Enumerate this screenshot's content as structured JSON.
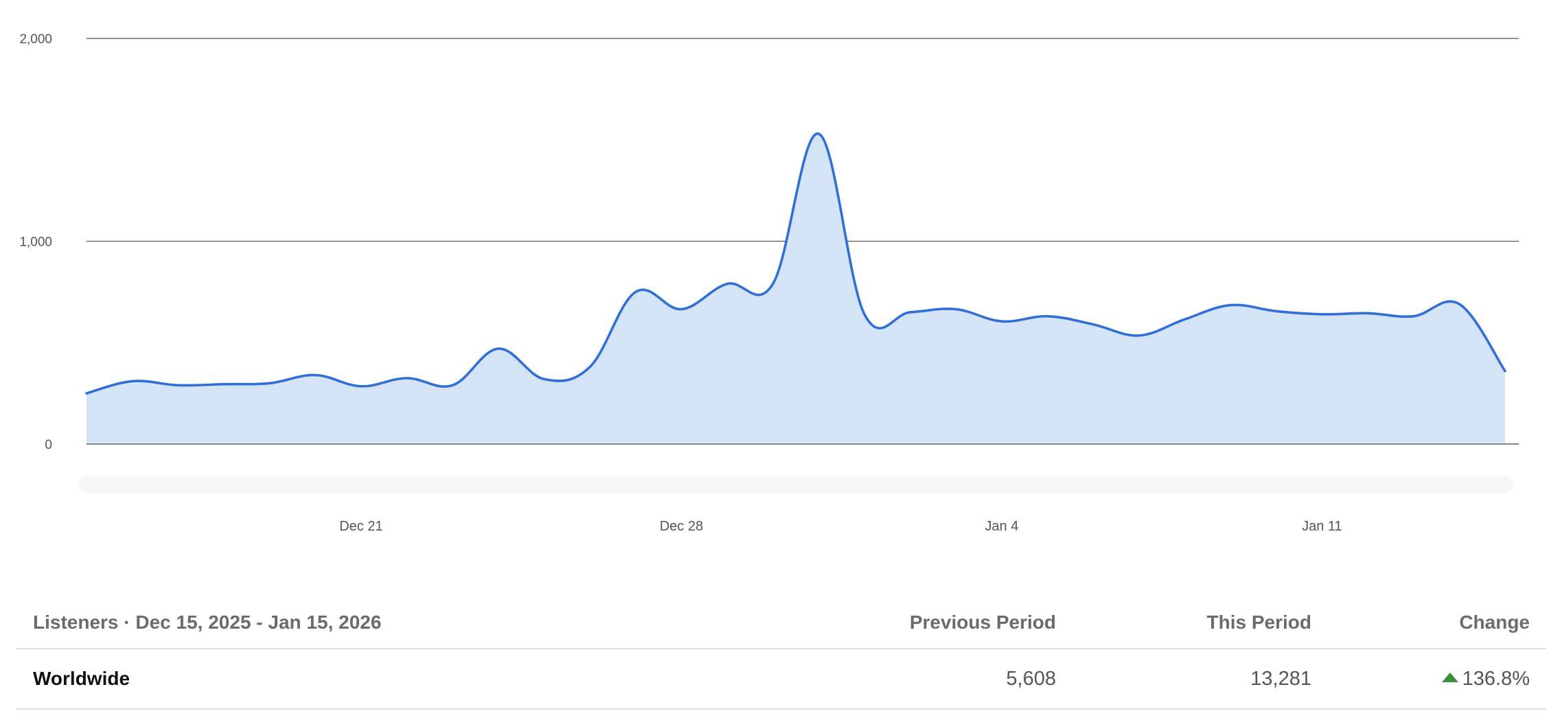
{
  "chart_data": {
    "type": "area",
    "y_ticks": [
      "2,000",
      "1,000",
      "0"
    ],
    "y_tick_values": [
      2000,
      1000,
      0
    ],
    "ylim": [
      0,
      2000
    ],
    "x_tick_labels": [
      "Dec 21",
      "Dec 28",
      "Jan 4",
      "Jan 11"
    ],
    "x_tick_dates": [
      "2025-12-21",
      "2025-12-28",
      "2026-01-04",
      "2026-01-11"
    ],
    "grid": true,
    "series": [
      {
        "x": [
          "2025-12-15",
          "2025-12-16",
          "2025-12-17",
          "2025-12-18",
          "2025-12-19",
          "2025-12-20",
          "2025-12-21",
          "2025-12-22",
          "2025-12-23",
          "2025-12-24",
          "2025-12-25",
          "2025-12-26",
          "2025-12-27",
          "2025-12-28",
          "2025-12-29",
          "2025-12-30",
          "2025-12-31",
          "2026-01-01",
          "2026-01-02",
          "2026-01-03",
          "2026-01-04",
          "2026-01-05",
          "2026-01-06",
          "2026-01-07",
          "2026-01-08",
          "2026-01-09",
          "2026-01-10",
          "2026-01-11",
          "2026-01-12",
          "2026-01-13",
          "2026-01-14",
          "2026-01-15"
        ],
        "values": [
          250,
          310,
          290,
          295,
          300,
          340,
          285,
          325,
          290,
          470,
          320,
          380,
          750,
          665,
          790,
          790,
          1530,
          640,
          650,
          665,
          605,
          630,
          590,
          535,
          615,
          685,
          655,
          640,
          645,
          630,
          690,
          360
        ]
      }
    ]
  },
  "summary": {
    "header": {
      "label": "Listeners · Dec 15, 2025 - Jan 15, 2026",
      "previous": "Previous Period",
      "current": "This Period",
      "change": "Change"
    },
    "rows": [
      {
        "label": "Worldwide",
        "previous": "5,608",
        "current": "13,281",
        "change": "136.8%",
        "trend": "up"
      }
    ],
    "colors": {
      "up": "#3b8f3b",
      "line": "#2f6fd6",
      "area": "#d5e3f7"
    }
  }
}
